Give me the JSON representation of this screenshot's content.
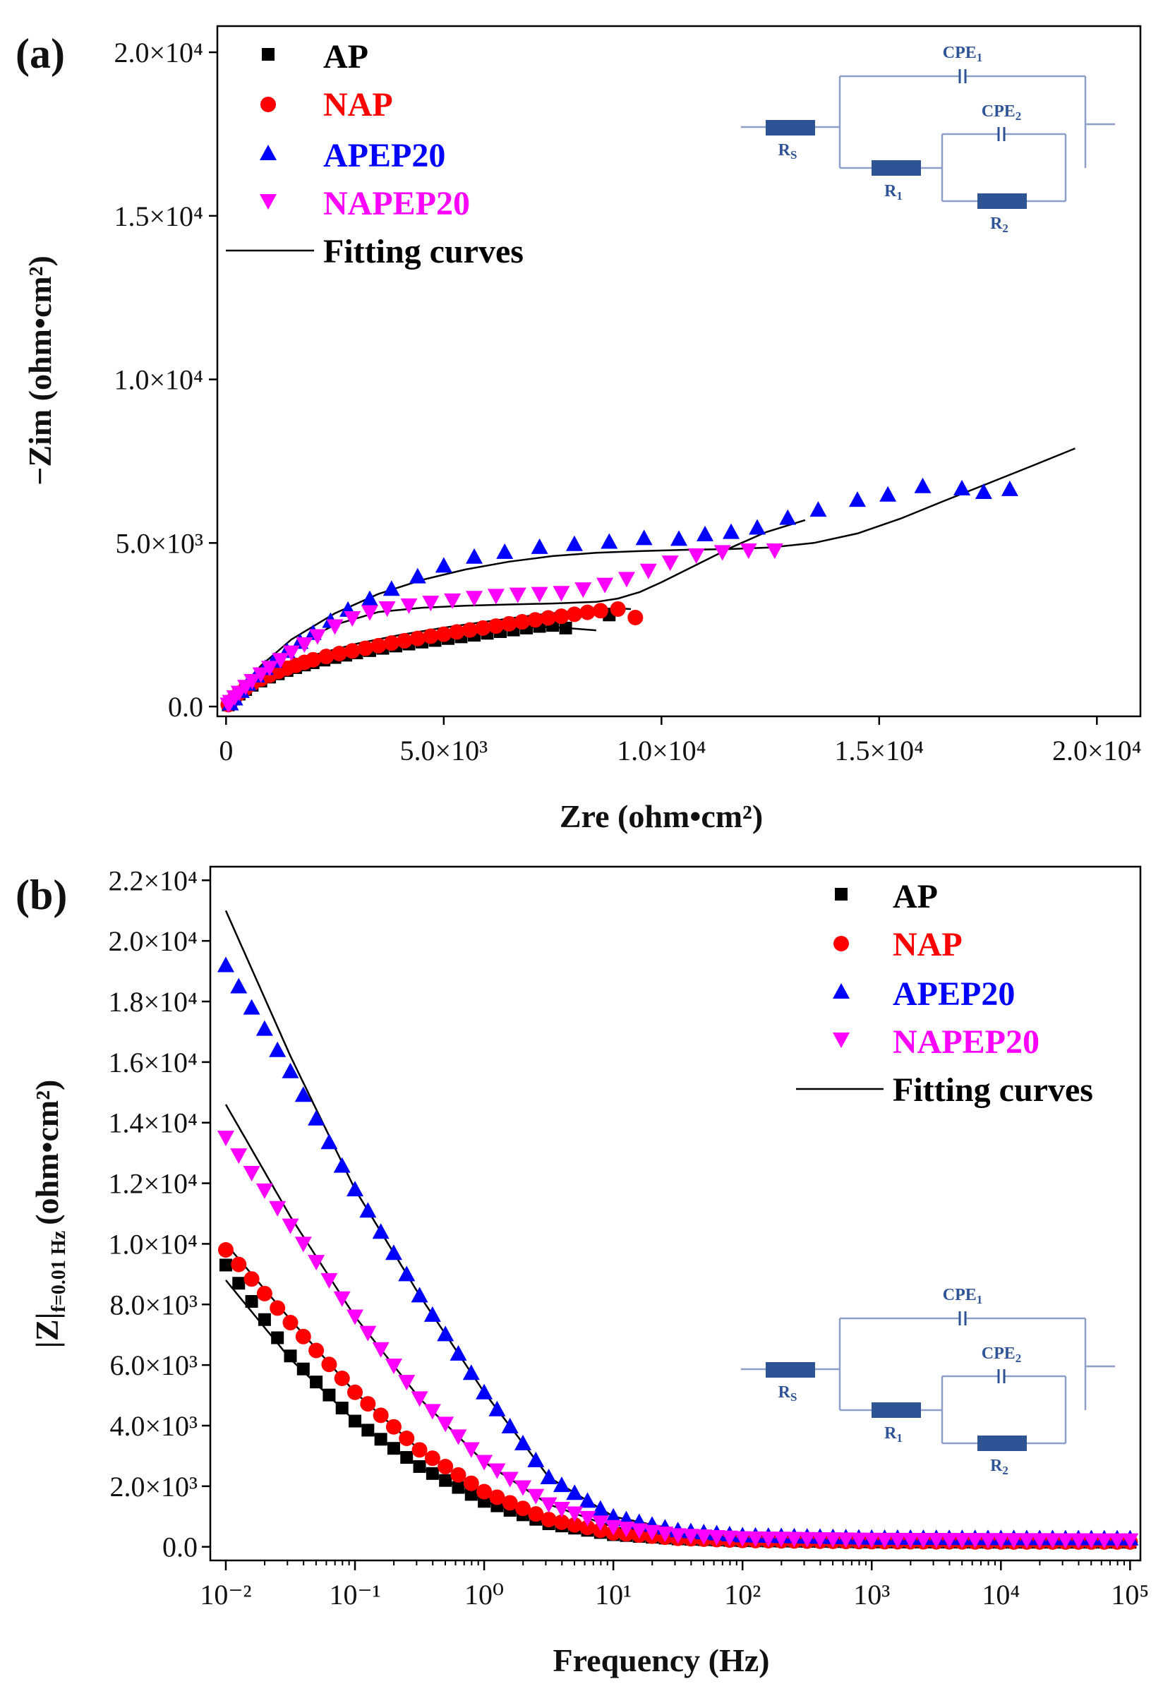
{
  "chart_data": [
    {
      "type": "scatter",
      "panel_label": "(a)",
      "xlabel": "Zre (ohm•cm²)",
      "ylabel": "−Zim (ohm•cm²)",
      "xlim": [
        -200,
        21000
      ],
      "ylim": [
        -300,
        20800
      ],
      "xticks": [
        0,
        5000,
        10000,
        15000,
        20000
      ],
      "xtick_labels": [
        "0",
        "5.0×10³",
        "1.0×10⁴",
        "1.5×10⁴",
        "2.0×10⁴"
      ],
      "yticks": [
        0,
        5000,
        10000,
        15000,
        20000
      ],
      "ytick_labels": [
        "0.0",
        "5.0×10³",
        "1.0×10⁴",
        "1.5×10⁴",
        "2.0×10⁴"
      ],
      "legend_position": "top-left",
      "series": [
        {
          "name": "AP",
          "marker": "square",
          "color": "#000000",
          "x": [
            50,
            100,
            200,
            300,
            450,
            600,
            800,
            1000,
            1200,
            1400,
            1600,
            1800,
            2000,
            2250,
            2500,
            2750,
            3000,
            3300,
            3600,
            3900,
            4200,
            4500,
            4800,
            5100,
            5400,
            5700,
            6000,
            6300,
            6600,
            6900,
            7200,
            7500,
            7800,
            8800
          ],
          "y": [
            50,
            120,
            250,
            380,
            520,
            650,
            780,
            900,
            1000,
            1100,
            1190,
            1270,
            1340,
            1420,
            1500,
            1570,
            1640,
            1710,
            1780,
            1850,
            1910,
            1970,
            2020,
            2080,
            2130,
            2180,
            2240,
            2290,
            2340,
            2400,
            2450,
            2480,
            2400,
            2800
          ]
        },
        {
          "name": "NAP",
          "marker": "circle",
          "color": "#ff0000",
          "x": [
            50,
            100,
            200,
            300,
            450,
            600,
            800,
            1000,
            1200,
            1400,
            1600,
            1800,
            2000,
            2300,
            2600,
            2900,
            3200,
            3500,
            3800,
            4100,
            4400,
            4700,
            5000,
            5300,
            5600,
            5900,
            6200,
            6500,
            6800,
            7100,
            7400,
            7700,
            8000,
            8300,
            8600,
            9000,
            9400
          ],
          "y": [
            60,
            130,
            270,
            410,
            560,
            700,
            840,
            960,
            1070,
            1170,
            1260,
            1350,
            1430,
            1530,
            1620,
            1700,
            1780,
            1860,
            1940,
            2010,
            2080,
            2150,
            2210,
            2280,
            2340,
            2400,
            2460,
            2530,
            2590,
            2650,
            2710,
            2760,
            2820,
            2880,
            2930,
            2980,
            2720
          ]
        },
        {
          "name": "APEP20",
          "marker": "triangle-up",
          "color": "#0000ff",
          "x": [
            100,
            200,
            350,
            500,
            700,
            900,
            1100,
            1400,
            1700,
            2000,
            2400,
            2800,
            3300,
            3800,
            4400,
            5000,
            5700,
            6400,
            7200,
            8000,
            8800,
            9600,
            10400,
            11000,
            11600,
            12200,
            12900,
            13600,
            14500,
            15200,
            16000,
            16900,
            17400,
            18000
          ],
          "y": [
            100,
            250,
            480,
            700,
            950,
            1180,
            1400,
            1700,
            1980,
            2250,
            2620,
            2960,
            3290,
            3600,
            3980,
            4310,
            4580,
            4730,
            4880,
            4970,
            5040,
            5150,
            5130,
            5270,
            5340,
            5470,
            5770,
            6020,
            6320,
            6480,
            6740,
            6670,
            6560,
            6650
          ]
        },
        {
          "name": "NAPEP20",
          "marker": "triangle-down",
          "color": "#ff00ff",
          "x": [
            50,
            100,
            200,
            300,
            450,
            600,
            800,
            1000,
            1250,
            1500,
            1800,
            2100,
            2500,
            2900,
            3300,
            3700,
            4200,
            4700,
            5200,
            5700,
            6200,
            6700,
            7200,
            7700,
            8200,
            8700,
            9200,
            9700,
            10200,
            10800,
            11400,
            12000,
            12600
          ],
          "y": [
            60,
            140,
            280,
            420,
            600,
            780,
            980,
            1180,
            1420,
            1650,
            1900,
            2150,
            2450,
            2700,
            2880,
            3000,
            3090,
            3170,
            3240,
            3320,
            3380,
            3420,
            3440,
            3470,
            3580,
            3720,
            3900,
            4150,
            4400,
            4620,
            4720,
            4770,
            4770
          ]
        }
      ],
      "fits": [
        {
          "name": "AP fit",
          "x": [
            0,
            300,
            700,
            1200,
            2000,
            3000,
            4000,
            5000,
            6000,
            7000,
            7500,
            8000,
            8500
          ],
          "y": [
            0,
            350,
            750,
            1120,
            1480,
            1800,
            2030,
            2200,
            2350,
            2430,
            2430,
            2380,
            2330
          ]
        },
        {
          "name": "NAP fit",
          "x": [
            0,
            300,
            700,
            1200,
            2000,
            3000,
            4000,
            5000,
            6000,
            7000,
            8000,
            8500,
            9000,
            9300
          ],
          "y": [
            0,
            380,
            800,
            1180,
            1570,
            1920,
            2190,
            2410,
            2600,
            2780,
            2920,
            2980,
            3000,
            2980
          ]
        },
        {
          "name": "APEP20 fit",
          "x": [
            0,
            300,
            800,
            1500,
            2500,
            3500,
            4500,
            5500,
            6500,
            7500,
            8500,
            9500,
            10500,
            11500,
            12500,
            13500,
            14500,
            15500,
            16500,
            17500,
            18500,
            19500
          ],
          "y": [
            0,
            500,
            1250,
            2050,
            2850,
            3440,
            3870,
            4190,
            4430,
            4600,
            4700,
            4750,
            4790,
            4810,
            4860,
            5000,
            5290,
            5750,
            6290,
            6820,
            7350,
            7890
          ]
        },
        {
          "name": "NAPEP20 fit",
          "x": [
            0,
            300,
            800,
            1500,
            2500,
            3500,
            4500,
            5500,
            6500,
            7500,
            8500,
            9000,
            9500,
            10000,
            10800,
            11600,
            12400,
            13300
          ],
          "y": [
            0,
            440,
            1100,
            1800,
            2500,
            2890,
            3020,
            3080,
            3120,
            3150,
            3200,
            3300,
            3500,
            3800,
            4330,
            4860,
            5330,
            5700
          ]
        }
      ],
      "legend": [
        "AP",
        "NAP",
        "APEP20",
        "NAPEP20",
        "Fitting curves"
      ],
      "circuit_labels": {
        "cpe1": "CPE",
        "cpe1_sub": "1",
        "cpe2": "CPE",
        "cpe2_sub": "2",
        "rs": "R",
        "rs_sub": "S",
        "r1": "R",
        "r1_sub": "1",
        "r2": "R",
        "r2_sub": "2"
      }
    },
    {
      "type": "scatter",
      "panel_label": "(b)",
      "xscale": "log",
      "xlabel": "Frequency (Hz)",
      "ylabel": "|Z|f=0.01 Hz (ohm•cm²)",
      "ylabel_main": "|Z|",
      "ylabel_sub": "f=0.01 Hz",
      "ylabel_unit": "(ohm•cm²)",
      "xlim_log10": [
        -2.12,
        5.08
      ],
      "ylim": [
        -450,
        22450
      ],
      "xticks_log10": [
        -2,
        -1,
        0,
        1,
        2,
        3,
        4,
        5
      ],
      "xtick_labels": [
        "10⁻²",
        "10⁻¹",
        "10⁰",
        "10¹",
        "10²",
        "10³",
        "10⁴",
        "10⁵"
      ],
      "yticks": [
        0,
        2000,
        4000,
        6000,
        8000,
        10000,
        12000,
        14000,
        16000,
        18000,
        20000,
        22000
      ],
      "ytick_labels": [
        "0.0",
        "2.0×10³",
        "4.0×10³",
        "6.0×10³",
        "8.0×10³",
        "1.0×10⁴",
        "1.2×10⁴",
        "1.4×10⁴",
        "1.6×10⁴",
        "1.8×10⁴",
        "2.0×10⁴",
        "2.2×10⁴"
      ],
      "legend_position": "top-right",
      "anchors": {
        "AP": {
          "logf": [
            -2,
            -1.5,
            -1,
            -0.5,
            0,
            0.5,
            1,
            1.5,
            2,
            3,
            4,
            5
          ],
          "z": [
            9300,
            6300,
            4150,
            2650,
            1500,
            760,
            400,
            260,
            200,
            160,
            150,
            150
          ]
        },
        "NAP": {
          "logf": [
            -2,
            -1.5,
            -1,
            -0.5,
            0,
            0.5,
            1,
            1.5,
            2,
            3,
            4,
            5
          ],
          "z": [
            9800,
            7400,
            5100,
            3200,
            1820,
            900,
            460,
            280,
            210,
            170,
            160,
            160
          ]
        },
        "APEP20": {
          "logf": [
            -2,
            -1.5,
            -1,
            -0.5,
            0,
            0.5,
            1,
            1.5,
            2,
            3,
            4,
            5
          ],
          "z": [
            19200,
            15700,
            11800,
            8300,
            5100,
            2300,
            1000,
            550,
            380,
            300,
            290,
            280
          ]
        },
        "NAPEP20": {
          "logf": [
            -2,
            -1.5,
            -1,
            -0.5,
            0,
            0.5,
            1,
            1.5,
            2,
            3,
            4,
            5
          ],
          "z": [
            13500,
            10600,
            7600,
            4900,
            2800,
            1400,
            650,
            380,
            280,
            230,
            220,
            210
          ]
        }
      },
      "fit_anchors": {
        "AP": {
          "logf": [
            -2,
            -1.5,
            -1,
            -0.5,
            0,
            0.5,
            1,
            1.5,
            2,
            3,
            4,
            5
          ],
          "z": [
            8800,
            6200,
            4150,
            2650,
            1500,
            760,
            400,
            260,
            200,
            160,
            150,
            150
          ]
        },
        "NAP": {
          "logf": [
            -2,
            -1.5,
            -1,
            -0.5,
            0,
            0.5,
            1,
            1.5,
            2,
            3,
            4,
            5
          ],
          "z": [
            10000,
            7500,
            5100,
            3200,
            1820,
            900,
            460,
            280,
            210,
            170,
            160,
            160
          ]
        },
        "APEP20": {
          "logf": [
            -2,
            -1.5,
            -1,
            -0.5,
            0,
            0.5,
            1,
            1.5,
            2,
            3,
            4,
            5
          ],
          "z": [
            21000,
            16200,
            11800,
            8300,
            5100,
            2300,
            1000,
            550,
            380,
            300,
            290,
            280
          ]
        },
        "NAPEP20": {
          "logf": [
            -2,
            -1.5,
            -1,
            -0.5,
            0,
            0.5,
            1,
            1.5,
            2,
            3,
            4,
            5
          ],
          "z": [
            14600,
            10900,
            7600,
            4900,
            2800,
            1400,
            650,
            380,
            280,
            230,
            220,
            210
          ]
        }
      },
      "legend": [
        "AP",
        "NAP",
        "APEP20",
        "NAPEP20",
        "Fitting curves"
      ],
      "circuit_labels": {
        "cpe1": "CPE",
        "cpe1_sub": "1",
        "cpe2": "CPE",
        "cpe2_sub": "2",
        "rs": "R",
        "rs_sub": "S",
        "r1": "R",
        "r1_sub": "1",
        "r2": "R",
        "r2_sub": "2"
      }
    }
  ],
  "colors": {
    "AP": "#000000",
    "NAP": "#ff0000",
    "APEP20": "#0000ff",
    "NAPEP20": "#ff00ff",
    "fit": "#000000",
    "circuit": "#2f5496",
    "wire": "#8c9fc8"
  }
}
